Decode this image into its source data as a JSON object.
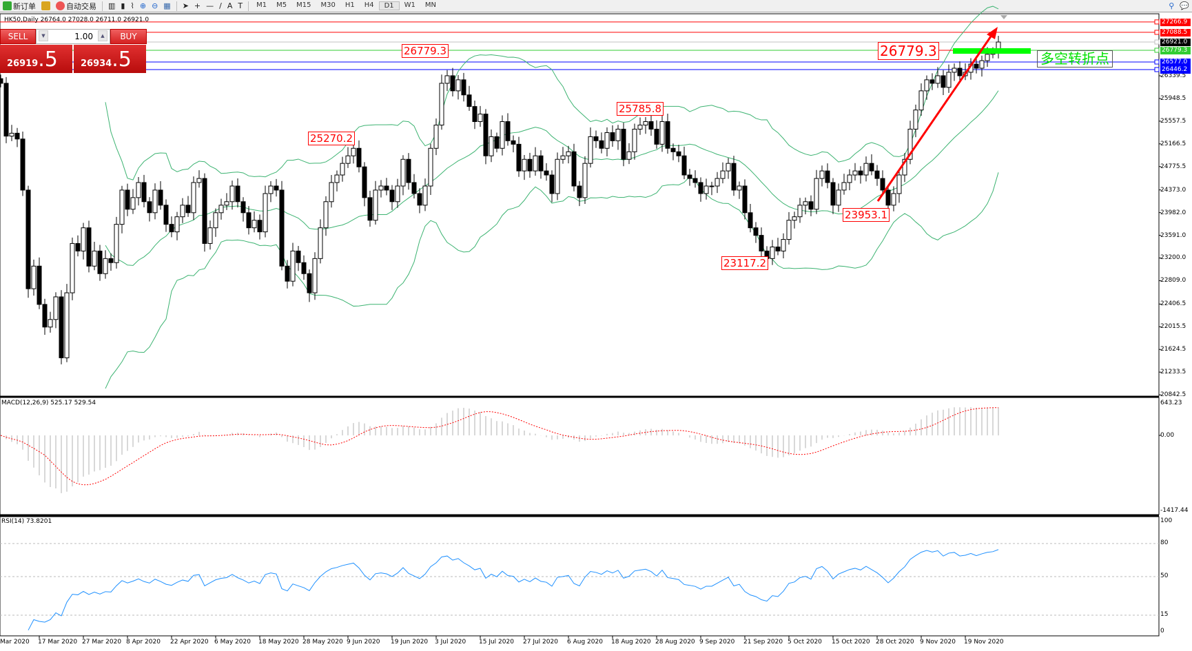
{
  "toolbar": {
    "new_order": "新订单",
    "auto_trade": "自动交易",
    "periods": [
      "M1",
      "M5",
      "M15",
      "M30",
      "H1",
      "H4",
      "D1",
      "W1",
      "MN"
    ],
    "active_period": "D1"
  },
  "chart": {
    "title": "HK50,Daily  26764.0 27028.0 26711.0 26921.0",
    "symbol": "HK50",
    "timeframe": "Daily",
    "price_axis": [
      "26339.5",
      "25948.5",
      "25557.5",
      "25166.5",
      "24775.5",
      "24373.0",
      "23982.0",
      "23591.0",
      "23200.0",
      "22809.0",
      "22406.5",
      "22015.5",
      "21624.5",
      "21233.5",
      "20842.5"
    ],
    "levels": [
      {
        "value": 27266.9,
        "label": "27266.9",
        "color": "#ff0000"
      },
      {
        "value": 27088.5,
        "label": "27088.5",
        "color": "#ff0000"
      },
      {
        "value": 26921.0,
        "label": "26921.0",
        "color": "#000000"
      },
      {
        "value": 26779.3,
        "label": "26779.3",
        "color": "#32cd32"
      },
      {
        "value": 26577.0,
        "label": "26577.0",
        "color": "#0000ff"
      },
      {
        "value": 26446.2,
        "label": "26446.2",
        "color": "#0000ff"
      }
    ],
    "annotations": [
      {
        "label": "26779.3",
        "bar": 81
      },
      {
        "label": "25270.2",
        "bar": 64
      },
      {
        "label": "25785.8",
        "bar": 120
      },
      {
        "label": "23117.2",
        "bar": 139
      },
      {
        "label": "23953.1",
        "bar": 161
      },
      {
        "label": "26779.3",
        "bar": 181
      }
    ],
    "zone_text": "多空转折点",
    "zone_color": "#00ff00",
    "closes": [
      26210,
      25300,
      25350,
      25250,
      24370,
      22670,
      23060,
      22400,
      22010,
      22140,
      22530,
      21480,
      22600,
      23450,
      23320,
      23720,
      23060,
      23320,
      22930,
      23190,
      23120,
      23780,
      24370,
      24040,
      24240,
      24500,
      24170,
      23980,
      24370,
      24110,
      23780,
      23650,
      23910,
      24110,
      23980,
      24500,
      24570,
      23450,
      23720,
      23980,
      24110,
      24170,
      24440,
      24170,
      23980,
      23720,
      23850,
      23650,
      24310,
      24440,
      24370,
      23060,
      22800,
      23320,
      23120,
      22930,
      22600,
      23190,
      23720,
      24170,
      24500,
      24630,
      24830,
      24960,
      25090,
      24770,
      24240,
      23850,
      24370,
      24440,
      24370,
      24170,
      24440,
      24900,
      24500,
      24310,
      24110,
      24440,
      25090,
      25490,
      26210,
      26340,
      26080,
      26270,
      26010,
      25810,
      25550,
      25680,
      24960,
      25290,
      25090,
      25550,
      25220,
      25160,
      24700,
      24900,
      24700,
      24960,
      24700,
      24630,
      24310,
      24900,
      24960,
      25030,
      24440,
      24240,
      24830,
      25290,
      25220,
      25090,
      25360,
      25220,
      25420,
      24900,
      25030,
      25420,
      25490,
      25550,
      25420,
      25160,
      25550,
      25090,
      25030,
      24960,
      24630,
      24570,
      24500,
      24310,
      24440,
      24440,
      24570,
      24700,
      24830,
      24370,
      24440,
      23980,
      23720,
      23590,
      23320,
      23190,
      23390,
      23320,
      23520,
      23850,
      23910,
      24110,
      24170,
      24040,
      24570,
      24700,
      24500,
      24110,
      24370,
      24500,
      24630,
      24700,
      24630,
      24830,
      24700,
      24570,
      24370,
      24110,
      24310,
      24630,
      24900,
      25420,
      25750,
      26080,
      26270,
      26210,
      26340,
      26140,
      26400,
      26470,
      26340,
      26400,
      26540,
      26470,
      26600,
      26710,
      26760,
      26921
    ],
    "dates": [
      {
        "label": "Mar 2020",
        "bar": -1
      },
      {
        "label": "17 Mar 2020",
        "bar": 7
      },
      {
        "label": "27 Mar 2020",
        "bar": 15
      },
      {
        "label": "8 Apr 2020",
        "bar": 23
      },
      {
        "label": "22 Apr 2020",
        "bar": 31
      },
      {
        "label": "6 May 2020",
        "bar": 39
      },
      {
        "label": "18 May 2020",
        "bar": 47
      },
      {
        "label": "28 May 2020",
        "bar": 55
      },
      {
        "label": "9 Jun 2020",
        "bar": 63
      },
      {
        "label": "19 Jun 2020",
        "bar": 71
      },
      {
        "label": "3 Jul 2020",
        "bar": 79
      },
      {
        "label": "15 Jul 2020",
        "bar": 87
      },
      {
        "label": "27 Jul 2020",
        "bar": 95
      },
      {
        "label": "6 Aug 2020",
        "bar": 103
      },
      {
        "label": "18 Aug 2020",
        "bar": 111
      },
      {
        "label": "28 Aug 2020",
        "bar": 119
      },
      {
        "label": "9 Sep 2020",
        "bar": 127
      },
      {
        "label": "21 Sep 2020",
        "bar": 135
      },
      {
        "label": "5 Oct 2020",
        "bar": 143
      },
      {
        "label": "15 Oct 2020",
        "bar": 151
      },
      {
        "label": "28 Oct 2020",
        "bar": 159
      },
      {
        "label": "9 Nov 2020",
        "bar": 167
      },
      {
        "label": "19 Nov 2020",
        "bar": 175
      }
    ],
    "colors": {
      "bands": "#3cb371",
      "arrow": "#ff0000",
      "macd_hist": "#b0b0b0",
      "macd_signal": "#ff0000",
      "rsi": "#1e90ff"
    }
  },
  "trade_panel": {
    "sell": "SELL",
    "buy": "BUY",
    "volume": "1.00",
    "bid_main": "26919",
    "bid_big": ".5",
    "ask_main": "26934",
    "ask_big": ".5"
  },
  "macd": {
    "label": "MACD(12,26,9) 525.17 529.54",
    "max": "643.23",
    "zero": "0.00",
    "min": "-1417.44"
  },
  "rsi": {
    "label": "RSI(14) 73.8201",
    "levels": [
      "100",
      "80",
      "50",
      "15",
      "0"
    ]
  }
}
